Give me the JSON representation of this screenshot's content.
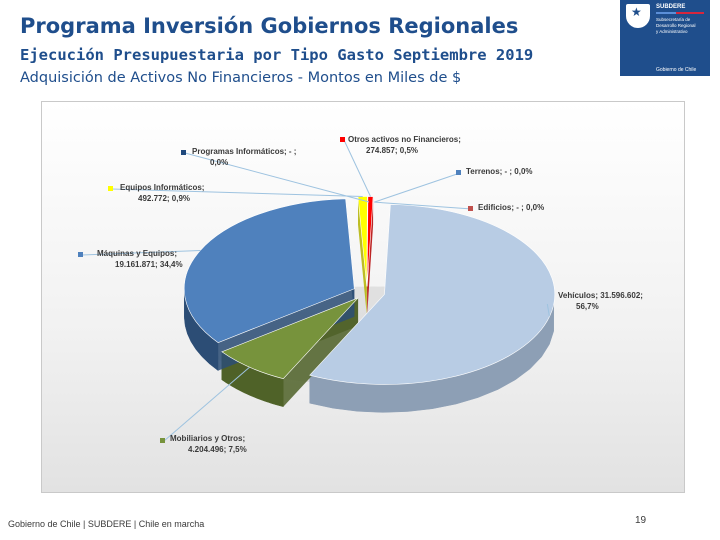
{
  "header": {
    "title": "Programa Inversión Gobiernos Regionales",
    "subtitle": "Ejecución Presupuestaria por Tipo Gasto Septiembre 2019",
    "subtitle2": "Adquisición de Activos No Financieros - Montos en Miles de $"
  },
  "logo": {
    "brand": "SUBDERE",
    "lines": [
      "Subsecretaría de",
      "Desarrollo Regional",
      "y Administrativo"
    ],
    "gov": "Gobierno de Chile",
    "colors": {
      "background": "#1f4e8c",
      "blue": "#5b8fd8",
      "red": "#d7263d"
    }
  },
  "footer": {
    "text": "Gobierno de Chile | SUBDERE | Chile en marcha",
    "page": "19"
  },
  "chart_data": {
    "type": "pie",
    "style": "3d-exploded",
    "legend": "data-labels",
    "slices": [
      {
        "name": "Vehículos",
        "value": 31596602,
        "percent": 56.7,
        "label_line1": "Vehículos; 31.596.602;",
        "label_line2": "56,7%",
        "color": "#b8cce4",
        "side": "#8d9fb5"
      },
      {
        "name": "Mobiliarios y Otros",
        "value": 4204496,
        "percent": 7.5,
        "label_line1": "Mobiliarios y Otros;",
        "label_line2": "4.204.496; 7,5%",
        "color": "#77933c",
        "side": "#4f6228"
      },
      {
        "name": "Máquinas y Equipos",
        "value": 19161871,
        "percent": 34.4,
        "label_line1": "Máquinas y Equipos;",
        "label_line2": "19.161.871; 34,4%",
        "color": "#4f81bd",
        "side": "#2c4d75"
      },
      {
        "name": "Equipos Informáticos",
        "value": 492772,
        "percent": 0.9,
        "label_line1": "Equipos Informáticos;",
        "label_line2": "492.772; 0,9%",
        "color": "#ffff00",
        "side": "#b3b300"
      },
      {
        "name": "Programas Informáticos",
        "value": 0,
        "percent": 0.0,
        "label_line1": "Programas Informáticos; -  ;",
        "label_line2": "0,0%",
        "color": "#1f497d",
        "side": "#142f52"
      },
      {
        "name": "Otros activos no Financieros",
        "value": 274857,
        "percent": 0.5,
        "label_line1": "Otros activos no Financieros;",
        "label_line2": "274.857; 0,5%",
        "color": "#ff0000",
        "side": "#b30000"
      },
      {
        "name": "Terrenos",
        "value": 0,
        "percent": 0.0,
        "label_line1": "Terrenos;  -  ; 0,0%",
        "label_line2": "",
        "color": "#4f81bd",
        "side": "#2c4d75"
      },
      {
        "name": "Edificios",
        "value": 0,
        "percent": 0.0,
        "label_line1": "Edificios;  -  ; 0,0%",
        "label_line2": "",
        "color": "#c0504d",
        "side": "#8c3a38"
      }
    ]
  }
}
